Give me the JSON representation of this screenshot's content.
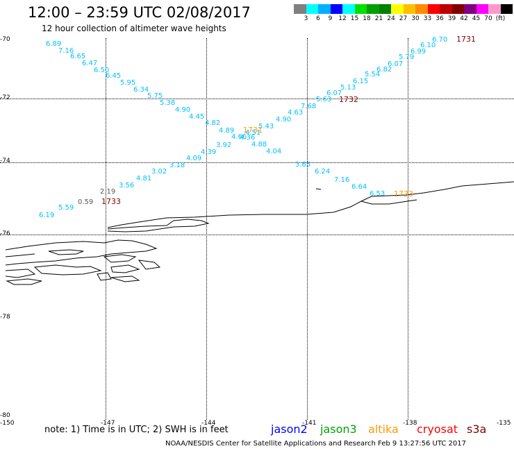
{
  "header": {
    "title": "12:00 – 23:59 UTC 02/08/2017",
    "subtitle": "12 hour collection of altimeter wave heights"
  },
  "legend": {
    "colors": [
      "#808080",
      "#00ffff",
      "#00b0ff",
      "#0000ff",
      "#00ffff",
      "#00e000",
      "#00a000",
      "#008000",
      "#ffff00",
      "#ffc000",
      "#ff8c00",
      "#ff0000",
      "#c00000",
      "#800000",
      "#800080",
      "#ff00ff",
      "#ff99cc",
      "#000000"
    ],
    "labels": [
      "3",
      "6",
      "9",
      "12",
      "15",
      "18",
      "21",
      "24",
      "27",
      "30",
      "33",
      "36",
      "39",
      "42",
      "45",
      "70",
      "(ft)"
    ]
  },
  "grid": {
    "lat_labels": [
      "-70",
      "-72",
      "-74",
      "-76",
      "-78",
      "-80"
    ],
    "lon_labels": [
      "-150",
      "-147",
      "-144",
      "-141",
      "-138",
      "-135"
    ]
  },
  "colors": {
    "swh": "#00bfff",
    "time_dark": "#800000",
    "time_altika": "#ff9900",
    "gray": "#555555"
  },
  "wave_values": [
    "6.89",
    "7.16",
    "6.65",
    "6.47",
    "6.50",
    "6.45",
    "5.95",
    "6.34",
    "5.75",
    "5.38",
    "4.90",
    "4.45",
    "4.82",
    "4.89",
    "4.66",
    "4.36",
    "4.88",
    "4.04",
    "6.70",
    "6.10",
    "6.99",
    "5.79",
    "6.07",
    "6.82",
    "5.54",
    "6.15",
    "5.13",
    "6.07",
    "5.63",
    "7.68",
    "4.63",
    "4.90",
    "5.43",
    "4.51",
    "3.92",
    "4.39",
    "4.09",
    "3.18",
    "3.02",
    "4.81",
    "3.56",
    "2.19",
    "0.59",
    "5.59",
    "6.19",
    "3.65",
    "6.24",
    "7.16",
    "6.64",
    "6.53"
  ],
  "time_labels": [
    "1731",
    "1732",
    "1731",
    "1733",
    "1733"
  ],
  "note": "note: 1) Time is in UTC; 2) SWH is in feet",
  "satellites": [
    {
      "name": "jason2",
      "color": "#0000ff"
    },
    {
      "name": "jason3",
      "color": "#00a000"
    },
    {
      "name": "altika",
      "color": "#ff9900"
    },
    {
      "name": "cryosat",
      "color": "#ff0000"
    },
    {
      "name": "s3a",
      "color": "#800000"
    }
  ],
  "footer": "NOAA/NESDIS Center for Satellite Applications and Research    Feb  9 13:27:56 UTC 2017"
}
